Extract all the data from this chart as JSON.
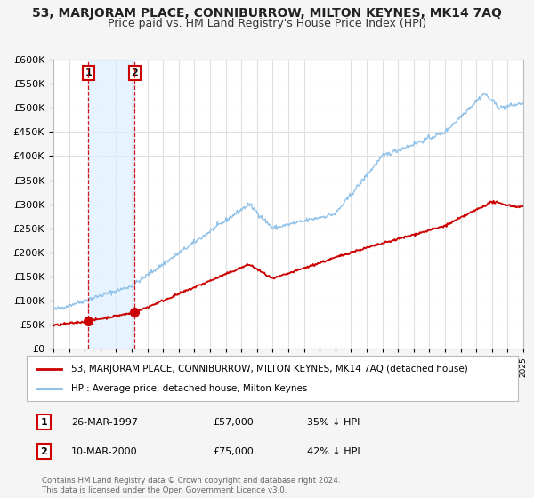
{
  "title": "53, MARJORAM PLACE, CONNIBURROW, MILTON KEYNES, MK14 7AQ",
  "subtitle": "Price paid vs. HM Land Registry's House Price Index (HPI)",
  "background_color": "#f5f5f5",
  "plot_bg_color": "#ffffff",
  "grid_color": "#e0e0e0",
  "sale1_date": 1997.23,
  "sale1_price": 57000,
  "sale1_label": "1",
  "sale2_date": 2000.19,
  "sale2_price": 75000,
  "sale2_label": "2",
  "legend_entry1": "53, MARJORAM PLACE, CONNIBURROW, MILTON KEYNES, MK14 7AQ (detached house)",
  "legend_entry2": "HPI: Average price, detached house, Milton Keynes",
  "table_row1": [
    "1",
    "26-MAR-1997",
    "£57,000",
    "35% ↓ HPI"
  ],
  "table_row2": [
    "2",
    "10-MAR-2000",
    "£75,000",
    "42% ↓ HPI"
  ],
  "footnote": "Contains HM Land Registry data © Crown copyright and database right 2024.\nThis data is licensed under the Open Government Licence v3.0.",
  "ylim_max": 600000,
  "hpi_color": "#8bbfe8",
  "price_color": "#cc0000",
  "vline_color": "#cc0000",
  "shade_color": "#ddeeff",
  "title_fontsize": 10,
  "subtitle_fontsize": 9
}
